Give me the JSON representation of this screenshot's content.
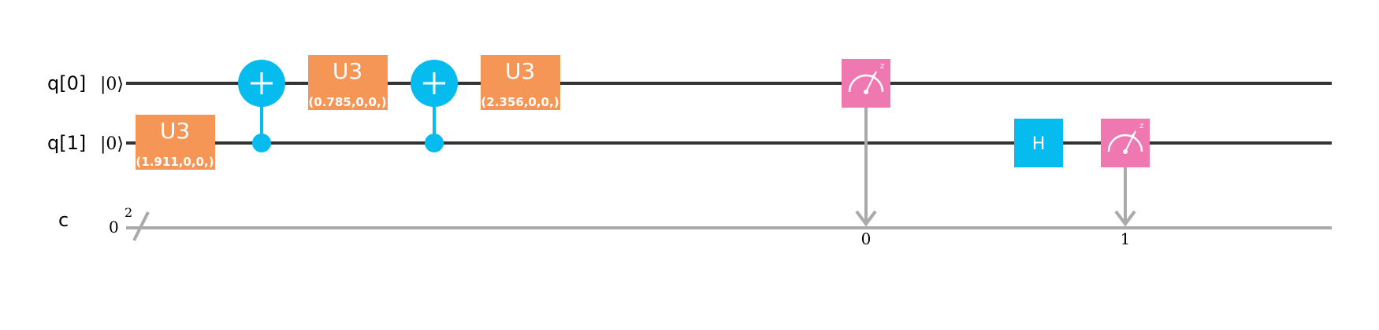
{
  "colors": {
    "quantum_wire": "#333333",
    "classical_wire": "#aaaaaa",
    "u3_gate": "#f59556",
    "cnot": "#06bbee",
    "hadamard": "#06bbee",
    "measure": "#f078b0"
  },
  "wires": {
    "q0": {
      "name": "q[0]",
      "init": "|0⟩"
    },
    "q1": {
      "name": "q[1]",
      "init": "|0⟩"
    },
    "c": {
      "name": "c",
      "init": "0",
      "size": "2"
    }
  },
  "gates": {
    "u3_a": {
      "name": "U3",
      "params": "(1.911,0,0,)"
    },
    "u3_b": {
      "name": "U3",
      "params": "(0.785,0,0,)"
    },
    "u3_c": {
      "name": "U3",
      "params": "(2.356,0,0,)"
    },
    "h": {
      "name": "H"
    },
    "cnot_1": {
      "icon": "cnot-target-icon"
    },
    "cnot_2": {
      "icon": "cnot-target-icon"
    },
    "measure_0": {
      "icon": "meter-icon",
      "basis": "z",
      "bit": "0"
    },
    "measure_1": {
      "icon": "meter-icon",
      "basis": "z",
      "bit": "1"
    }
  }
}
